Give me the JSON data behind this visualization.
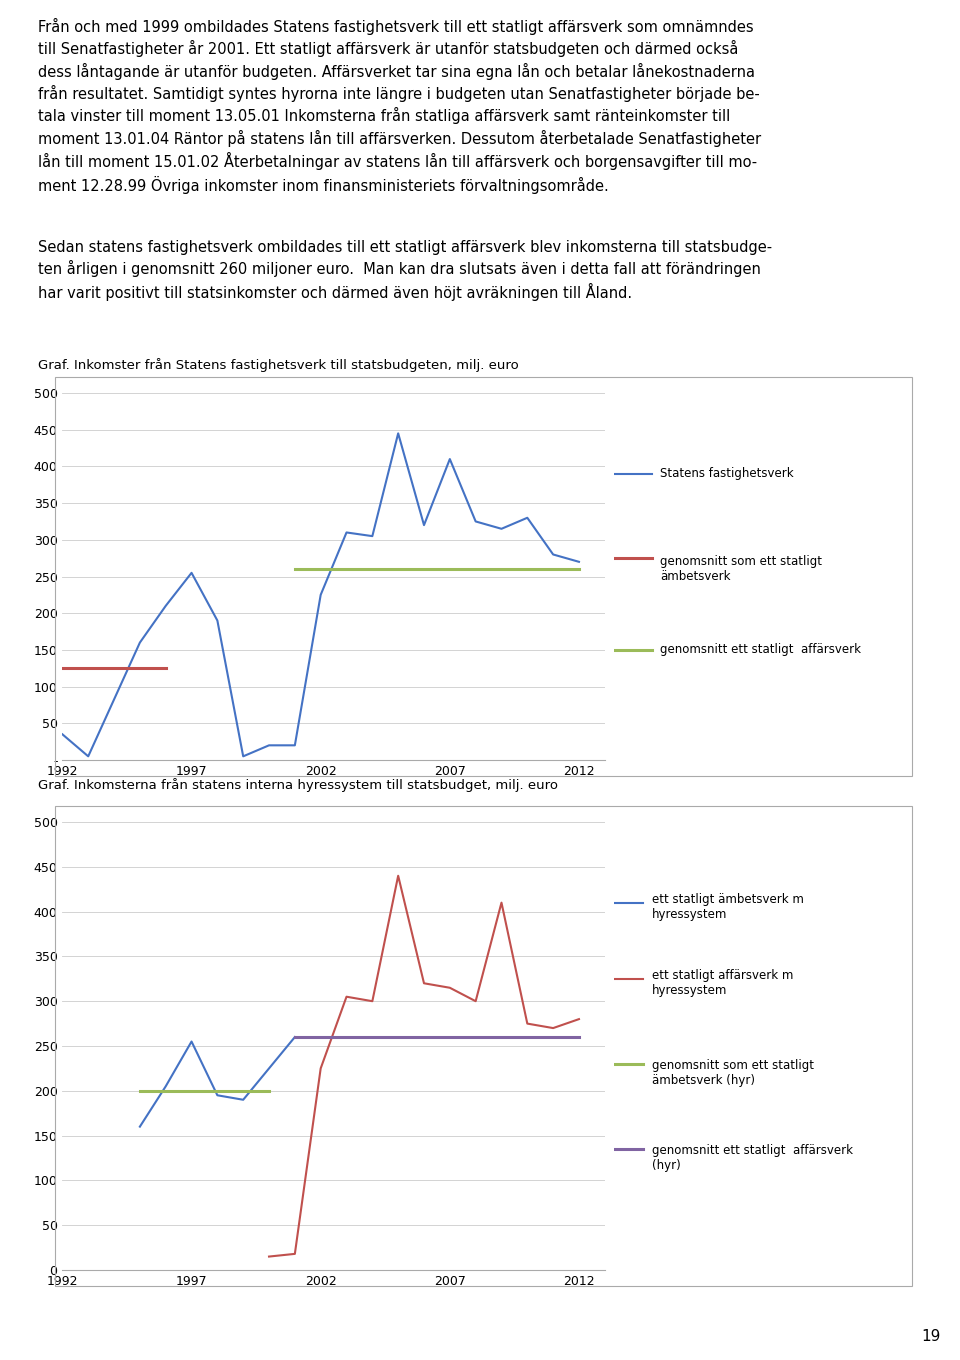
{
  "chart1_title": "Graf. Inkomster från Statens fastighetsverk till statsbudgeten, milj. euro",
  "chart1": {
    "ylim": [
      0,
      500
    ],
    "yticks": [
      0,
      50,
      100,
      150,
      200,
      250,
      300,
      350,
      400,
      450,
      500
    ],
    "ytick_labels": [
      "-",
      "50",
      "100",
      "150",
      "200",
      "250",
      "300",
      "350",
      "400",
      "450",
      "500"
    ],
    "xticks": [
      1992,
      1997,
      2002,
      2007,
      2012
    ],
    "blue_line": {
      "x": [
        1992,
        1993,
        1995,
        1996,
        1997,
        1998,
        1999,
        2000,
        2001,
        2002,
        2003,
        2004,
        2005,
        2006,
        2007,
        2008,
        2009,
        2010,
        2011,
        2012
      ],
      "y": [
        35,
        5,
        160,
        210,
        255,
        190,
        5,
        20,
        20,
        225,
        310,
        305,
        445,
        320,
        410,
        325,
        315,
        330,
        280,
        270
      ],
      "color": "#4472C4",
      "label": "Statens fastighetsverk"
    },
    "red_line": {
      "x": [
        1992,
        1996
      ],
      "y": [
        125,
        125
      ],
      "color": "#C0504D",
      "label": "genomsnitt som ett statligt\nämbetsverk"
    },
    "green_line": {
      "x": [
        2001,
        2012
      ],
      "y": [
        260,
        260
      ],
      "color": "#9BBB59",
      "label": "genomsnitt ett statligt  affärsverk"
    }
  },
  "chart2_title": "Graf. Inkomsterna från statens interna hyressystem till statsbudget, milj. euro",
  "chart2": {
    "ylim": [
      0,
      500
    ],
    "yticks": [
      0,
      50,
      100,
      150,
      200,
      250,
      300,
      350,
      400,
      450,
      500
    ],
    "ytick_labels": [
      "0",
      "50",
      "100",
      "150",
      "200",
      "250",
      "300",
      "350",
      "400",
      "450",
      "500"
    ],
    "xticks": [
      1992,
      1997,
      2002,
      2007,
      2012
    ],
    "blue_line": {
      "x": [
        1995,
        1996,
        1997,
        1998,
        1999,
        2001
      ],
      "y": [
        160,
        205,
        255,
        195,
        190,
        260
      ],
      "color": "#4472C4",
      "label": "ett statligt ämbetsverk m\nhyressystem"
    },
    "red_line": {
      "x": [
        2000,
        2001,
        2002,
        2003,
        2004,
        2005,
        2006,
        2007,
        2008,
        2009,
        2010,
        2011,
        2012
      ],
      "y": [
        15,
        18,
        225,
        305,
        300,
        440,
        320,
        315,
        300,
        410,
        275,
        270,
        280
      ],
      "color": "#C0504D",
      "label": "ett statligt affärsverk m\nhyressystem"
    },
    "green_line": {
      "x": [
        1995,
        2000
      ],
      "y": [
        200,
        200
      ],
      "color": "#9BBB59",
      "label": "genomsnitt som ett statligt\nämbetsverk (hyr)"
    },
    "purple_line": {
      "x": [
        2001,
        2012
      ],
      "y": [
        260,
        260
      ],
      "color": "#8064A2",
      "label": "genomsnitt ett statligt  affärsverk\n(hyr)"
    }
  },
  "page_number": "19",
  "background_color": "#FFFFFF",
  "line1_text": "Från och med 1999 ombildades Statens fastighetsverk till ett statligt affärsverk som omnämndes",
  "line2_text": "till Senatfastigheter år 2001. Ett statligt affärsverk är utanför statsbudgeten och därmed också",
  "line3_text": "dess låntagande är utanför budgeten. Affärsverket tar sina egna lån och betalar lånekostnaderna",
  "line4_text": "från resultatet. Samtidigt syntes hyrorna inte längre i budgeten utan Senatfastigheter började be-",
  "line5_text": "tala vinster till moment 13.05.01 Inkomsterna från statliga affärsverk samt ränteinkomster till",
  "line6_text": "moment 13.01.04 Räntor på statens lån till affärsverken. Dessutom återbetalade Senatfastigheter",
  "line7_text": "lån till moment 15.01.02 Återbetalningar av statens lån till affärsverk och borgensavgifter till mo-",
  "line8_text": "ment 12.28.99 Övriga inkomster inom finansministeriets förvaltningsområde.",
  "para2_line1": "Sedan statens fastighetsverk ombildades till ett statligt affärsverk blev inkomsterna till statsbudge-",
  "para2_line2": "ten årligen i genomsnitt 260 miljoner euro.  Man kan dra slutsats även i detta fall att förändringen",
  "para2_line3": "har varit positivt till statsinkomster och därmed även höjt avräkningen till Åland."
}
